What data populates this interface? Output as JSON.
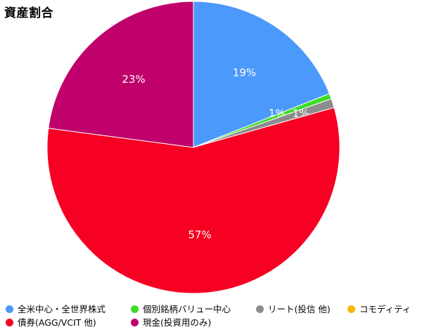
{
  "title": "資産割合",
  "chart_data": {
    "type": "pie",
    "title": "資産割合",
    "legend_position": "bottom",
    "slices": [
      {
        "name": "全米中心・全世界株式",
        "value": 19,
        "label": "19%",
        "color": "#4b99fb"
      },
      {
        "name": "個別銘柄バリュー中心",
        "value": 0.6,
        "label": "1%",
        "color": "#3ddb26"
      },
      {
        "name": "リート(投信 他)",
        "value": 1.0,
        "label": "1%",
        "color": "#8c8c8c"
      },
      {
        "name": "コモディティ",
        "value": 0,
        "label": "",
        "color": "#f6b800"
      },
      {
        "name": "債券(AGG/VCIT 他)",
        "value": 56.5,
        "label": "57%",
        "color": "#f60023"
      },
      {
        "name": "現金(投資用のみ)",
        "value": 22.9,
        "label": "23%",
        "color": "#c0006b"
      }
    ]
  }
}
